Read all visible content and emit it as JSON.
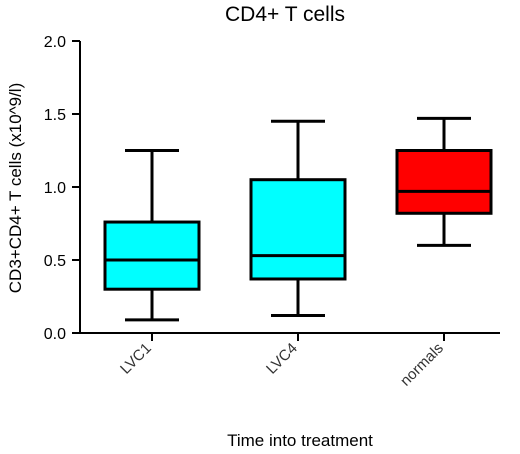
{
  "chart_data": {
    "type": "box",
    "title": "CD4+ T cells",
    "xlabel": "Time into treatment",
    "ylabel": "CD3+CD4+ T cells (x10^9/l)",
    "ylim": [
      0,
      2.0
    ],
    "yticks": [
      "0.0",
      "0.5",
      "1.0",
      "1.5",
      "2.0"
    ],
    "ytick_values": [
      0,
      0.5,
      1.0,
      1.5,
      2.0
    ],
    "categories": [
      "LVC1",
      "LVC4",
      "normals"
    ],
    "boxes": [
      {
        "category": "LVC1",
        "min": 0.09,
        "q1": 0.3,
        "median": 0.5,
        "q3": 0.76,
        "max": 1.25,
        "color": "#00ffff"
      },
      {
        "category": "LVC4",
        "min": 0.12,
        "q1": 0.37,
        "median": 0.53,
        "q3": 1.05,
        "max": 1.45,
        "color": "#00ffff"
      },
      {
        "category": "normals",
        "min": 0.6,
        "q1": 0.82,
        "median": 0.97,
        "q3": 1.25,
        "max": 1.47,
        "color": "#ff0000"
      }
    ],
    "grid": false,
    "legend": "none"
  }
}
